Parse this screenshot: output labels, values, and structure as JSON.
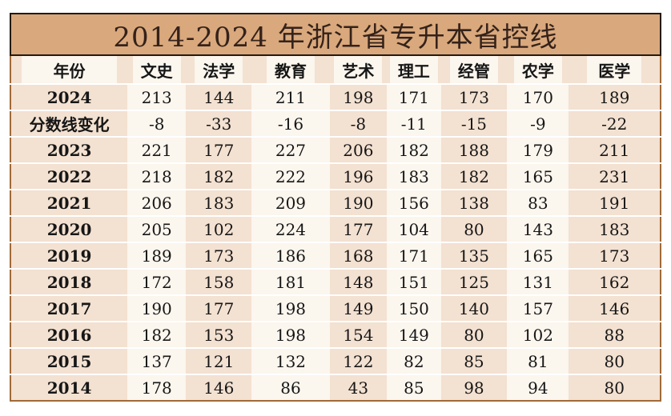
{
  "title": "2014-2024 年浙江省专升本省控线",
  "colors": {
    "title_bg": "#d9a87c",
    "title_border": "#241a12",
    "body_border": "#a06a38",
    "cell_tan": "#f3e1d1",
    "cell_cream": "#fbf6ee",
    "gridline": "#ffffff",
    "text": "#161616",
    "title_text": "#34221a"
  },
  "table": {
    "headers": [
      "年份",
      "文史",
      "法学",
      "教育",
      "艺术",
      "理工",
      "经管",
      "农学",
      "医学"
    ],
    "rows": [
      {
        "label": "2024",
        "values": [
          213,
          144,
          211,
          198,
          171,
          173,
          170,
          189
        ]
      },
      {
        "label": "分数线变化",
        "values": [
          "-8",
          "-33",
          "-16",
          "-8",
          "-11",
          "-15",
          "-9",
          "-22"
        ]
      },
      {
        "label": "2023",
        "values": [
          221,
          177,
          227,
          206,
          182,
          188,
          179,
          211
        ]
      },
      {
        "label": "2022",
        "values": [
          218,
          182,
          222,
          196,
          183,
          182,
          165,
          231
        ]
      },
      {
        "label": "2021",
        "values": [
          206,
          183,
          209,
          190,
          156,
          138,
          83,
          191
        ]
      },
      {
        "label": "2020",
        "values": [
          205,
          102,
          224,
          177,
          104,
          80,
          143,
          183
        ]
      },
      {
        "label": "2019",
        "values": [
          189,
          173,
          186,
          168,
          171,
          135,
          165,
          173
        ]
      },
      {
        "label": "2018",
        "values": [
          172,
          158,
          181,
          148,
          151,
          125,
          131,
          162
        ]
      },
      {
        "label": "2017",
        "values": [
          190,
          177,
          198,
          149,
          150,
          140,
          157,
          146
        ]
      },
      {
        "label": "2016",
        "values": [
          182,
          153,
          198,
          154,
          149,
          80,
          102,
          88
        ]
      },
      {
        "label": "2015",
        "values": [
          137,
          121,
          132,
          122,
          82,
          85,
          81,
          80
        ]
      },
      {
        "label": "2014",
        "values": [
          178,
          146,
          86,
          43,
          85,
          98,
          94,
          80
        ]
      }
    ]
  },
  "chart_data": {
    "type": "table",
    "title": "2014-2024年浙江省专升本省控线",
    "columns": [
      "年份",
      "文史",
      "法学",
      "教育",
      "艺术",
      "理工",
      "经管",
      "农学",
      "医学"
    ],
    "rows": [
      [
        "2024",
        213,
        144,
        211,
        198,
        171,
        173,
        170,
        189
      ],
      [
        "分数线变化",
        -8,
        -33,
        -16,
        -8,
        -11,
        -15,
        -9,
        -22
      ],
      [
        "2023",
        221,
        177,
        227,
        206,
        182,
        188,
        179,
        211
      ],
      [
        "2022",
        218,
        182,
        222,
        196,
        183,
        182,
        165,
        231
      ],
      [
        "2021",
        206,
        183,
        209,
        190,
        156,
        138,
        83,
        191
      ],
      [
        "2020",
        205,
        102,
        224,
        177,
        104,
        80,
        143,
        183
      ],
      [
        "2019",
        189,
        173,
        186,
        168,
        171,
        135,
        165,
        173
      ],
      [
        "2018",
        172,
        158,
        181,
        148,
        151,
        125,
        131,
        162
      ],
      [
        "2017",
        190,
        177,
        198,
        149,
        150,
        140,
        157,
        146
      ],
      [
        "2016",
        182,
        153,
        198,
        154,
        149,
        80,
        102,
        88
      ],
      [
        "2015",
        137,
        121,
        132,
        122,
        82,
        85,
        81,
        80
      ],
      [
        "2014",
        178,
        146,
        86,
        43,
        85,
        98,
        94,
        80
      ]
    ]
  }
}
